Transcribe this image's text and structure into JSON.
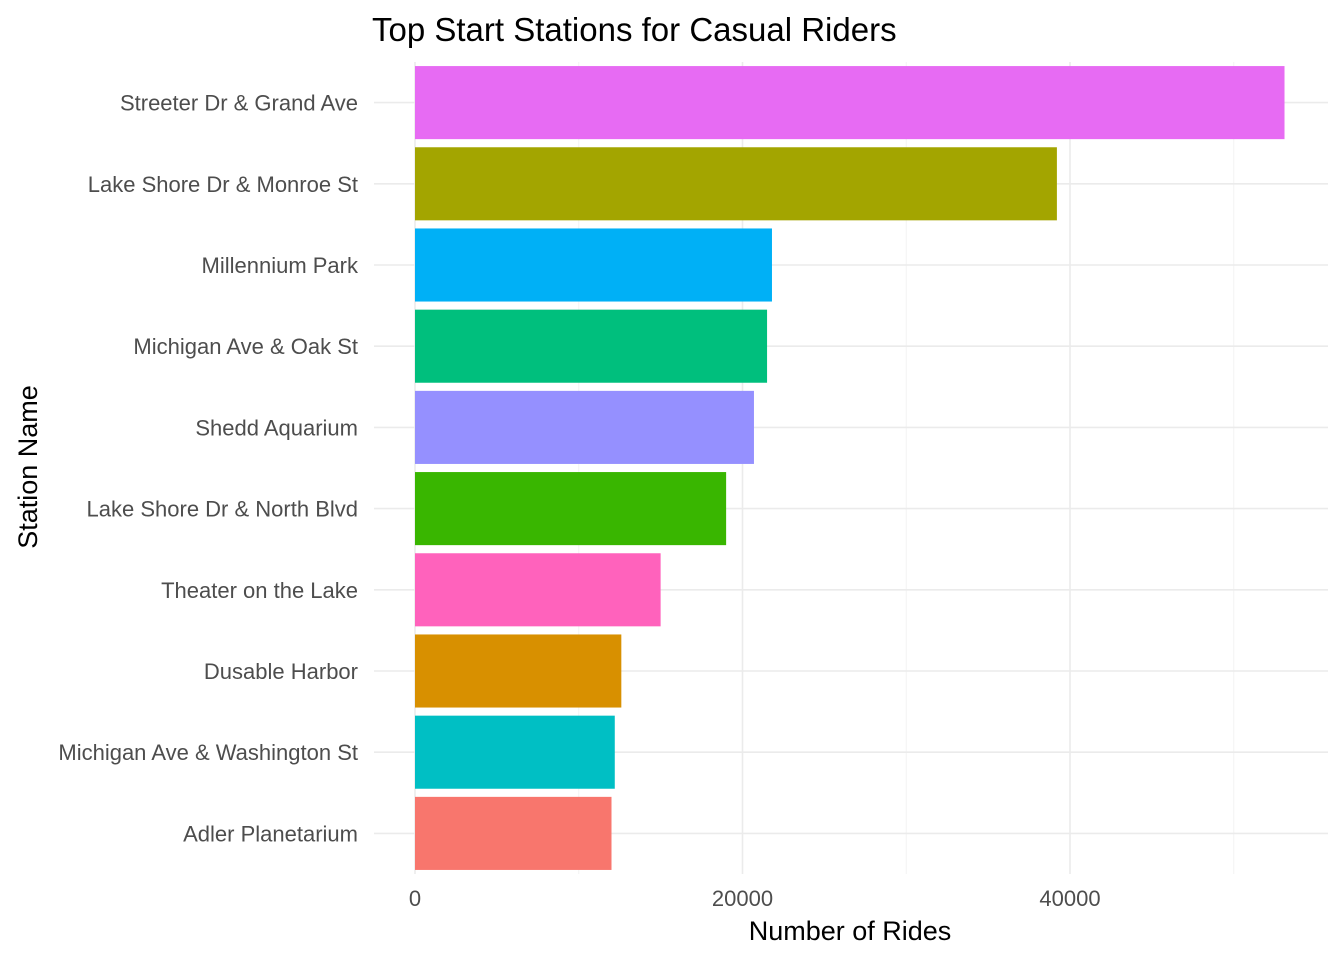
{
  "chart_data": {
    "type": "bar",
    "orientation": "horizontal",
    "title": "Top Start Stations for Casual Riders",
    "xlabel": "Number of Rides",
    "ylabel": "Station Name",
    "xlim": [
      0,
      55000
    ],
    "x_ticks": [
      0,
      20000,
      40000
    ],
    "x_tick_labels": [
      "0",
      "20000",
      "40000"
    ],
    "grid": true,
    "legend": "none",
    "categories": [
      "Streeter Dr & Grand Ave",
      "Lake Shore Dr & Monroe St",
      "Millennium Park",
      "Michigan Ave & Oak St",
      "Shedd Aquarium",
      "Lake Shore Dr & North Blvd",
      "Theater on the Lake",
      "Dusable Harbor",
      "Michigan Ave & Washington St",
      "Adler Planetarium"
    ],
    "values": [
      53100,
      39200,
      21800,
      21500,
      20700,
      19000,
      15000,
      12600,
      12200,
      12000
    ],
    "colors": [
      "#E76BF3",
      "#A3A500",
      "#00B0F6",
      "#00BF7D",
      "#9590FF",
      "#39B600",
      "#FF62BC",
      "#D89000",
      "#00BFC4",
      "#F8766D"
    ]
  }
}
